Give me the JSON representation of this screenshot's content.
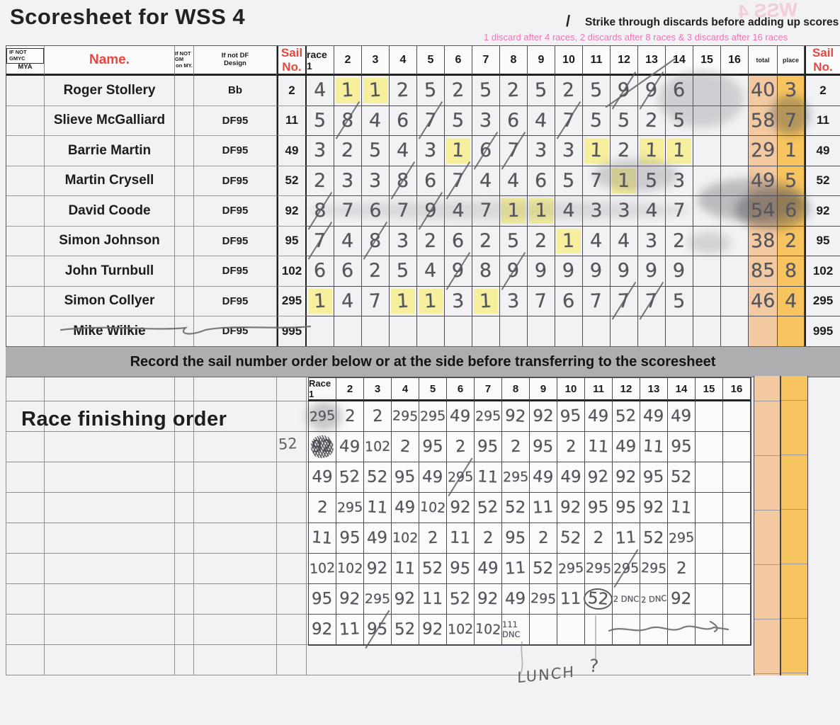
{
  "title": "Scoresheet for WSS 4",
  "ghost_text": "WSS 4",
  "instructions": {
    "slash": "/",
    "strike": "Strike through discards before adding up scores",
    "discard_rule": "1 discard after 4 races, 2 discards after 8 races & 3 discards after 16 races"
  },
  "colors": {
    "header_red": "#e8463e",
    "note_pink": "#f173b5",
    "highlight_yellow": "#f6ee8e",
    "total_column": "#f2c9a1",
    "place_column": "#f7c45f",
    "banner_gray": "#aeaeb0"
  },
  "scoresheet": {
    "headers": {
      "if_not_gmyc": "IF NOT GMYC",
      "mya": "MYA",
      "name": "Name.",
      "if_not_gm": "If NOT GM",
      "on_my": "on MY.",
      "if_not_df": "If not DF",
      "design": "Design",
      "sail": "Sail",
      "no": "No.",
      "total": "total",
      "place": "place"
    },
    "race_numbers": [
      "race 1",
      "2",
      "3",
      "4",
      "5",
      "6",
      "7",
      "8",
      "9",
      "10",
      "11",
      "12",
      "13",
      "14",
      "15",
      "16"
    ],
    "rows": [
      {
        "name": "Roger Stollery",
        "design": "Bb",
        "sail": "2",
        "sail_right": "2",
        "total": "40",
        "place": "3",
        "races": [
          "4",
          "1",
          "1",
          "2",
          "5",
          "2",
          "5",
          "2",
          "5",
          "2",
          "5",
          "9",
          "9",
          "6",
          "",
          ""
        ],
        "highlight_cols": [
          2,
          3
        ],
        "discard_cols": [
          12,
          13
        ],
        "struck_out": false
      },
      {
        "name": "Slieve McGalliard",
        "design": "DF95",
        "sail": "11",
        "sail_right": "11",
        "total": "58",
        "place": "7",
        "races": [
          "5",
          "8",
          "4",
          "6",
          "7",
          "5",
          "3",
          "6",
          "4",
          "7",
          "5",
          "5",
          "2",
          "5",
          "",
          ""
        ],
        "highlight_cols": [],
        "discard_cols": [
          2,
          5,
          10
        ],
        "struck_out": false
      },
      {
        "name": "Barrie Martin",
        "design": "DF95",
        "sail": "49",
        "sail_right": "49",
        "total": "29",
        "place": "1",
        "races": [
          "3",
          "2",
          "5",
          "4",
          "3",
          "1",
          "6",
          "7",
          "3",
          "3",
          "1",
          "2",
          "1",
          "1",
          "",
          ""
        ],
        "highlight_cols": [
          6,
          11,
          13,
          14
        ],
        "discard_cols": [
          7,
          8
        ],
        "struck_out": false
      },
      {
        "name": "Martin Crysell",
        "design": "DF95",
        "sail": "52",
        "sail_right": "52",
        "total": "49",
        "place": "5",
        "races": [
          "2",
          "3",
          "3",
          "8",
          "6",
          "7",
          "4",
          "4",
          "6",
          "5",
          "7",
          "1",
          "5",
          "3",
          "",
          ""
        ],
        "highlight_cols": [
          12
        ],
        "discard_cols": [
          4,
          6
        ],
        "struck_out": false
      },
      {
        "name": "David Coode",
        "design": "DF95",
        "sail": "92",
        "sail_right": "92",
        "total": "54",
        "place": "6",
        "races": [
          "8",
          "7",
          "6",
          "7",
          "9",
          "4",
          "7",
          "1",
          "1",
          "4",
          "3",
          "3",
          "4",
          "7",
          "",
          ""
        ],
        "highlight_cols": [
          8,
          9
        ],
        "discard_cols": [
          1,
          5
        ],
        "struck_out": false
      },
      {
        "name": "Simon Johnson",
        "design": "DF95",
        "sail": "95",
        "sail_right": "95",
        "total": "38",
        "place": "2",
        "races": [
          "7",
          "4",
          "8",
          "3",
          "2",
          "6",
          "2",
          "5",
          "2",
          "1",
          "4",
          "4",
          "3",
          "2",
          "",
          ""
        ],
        "highlight_cols": [
          10
        ],
        "discard_cols": [
          1,
          3
        ],
        "struck_out": false
      },
      {
        "name": "John Turnbull",
        "design": "DF95",
        "sail": "102",
        "sail_right": "102",
        "total": "85",
        "place": "8",
        "races": [
          "6",
          "6",
          "2",
          "5",
          "4",
          "9",
          "8",
          "9",
          "9",
          "9",
          "9",
          "9",
          "9",
          "9",
          "",
          ""
        ],
        "highlight_cols": [],
        "discard_cols": [
          6,
          8
        ],
        "struck_out": false
      },
      {
        "name": "Simon Collyer",
        "design": "DF95",
        "sail": "295",
        "sail_right": "295",
        "total": "46",
        "place": "4",
        "races": [
          "1",
          "4",
          "7",
          "1",
          "1",
          "3",
          "1",
          "3",
          "7",
          "6",
          "7",
          "7",
          "7",
          "5",
          "",
          ""
        ],
        "highlight_cols": [
          1,
          4,
          5,
          7
        ],
        "discard_cols": [
          12,
          13
        ],
        "struck_out": false
      },
      {
        "name": "Mike Wilkie",
        "design": "DF95",
        "sail": "995",
        "sail_right": "995",
        "total": "",
        "place": "",
        "races": [
          "",
          "",
          "",
          "",
          "",
          "",
          "",
          "",
          "",
          "",
          "",
          "",
          "",
          "",
          "",
          ""
        ],
        "highlight_cols": [],
        "discard_cols": [],
        "struck_out": true
      }
    ]
  },
  "banner": "Record the sail number order below or at the side before transferring to the scoresheet",
  "finishing": {
    "heading": "Race finishing order",
    "race_numbers": [
      "Race 1",
      "2",
      "3",
      "4",
      "5",
      "6",
      "7",
      "8",
      "9",
      "10",
      "11",
      "12",
      "13",
      "14",
      "15",
      "16"
    ],
    "correction_note": "52",
    "rows": [
      {
        "cells": [
          "295",
          "2",
          "2",
          "295",
          "295",
          "49",
          "295",
          "92",
          "92",
          "95",
          "49",
          "52",
          "49",
          "49",
          "",
          ""
        ],
        "discard_cols": [],
        "scribble_cols": [],
        "circled_cols": []
      },
      {
        "cells": [
          "92",
          "49",
          "102",
          "2",
          "95",
          "2",
          "95",
          "2",
          "95",
          "2",
          "11",
          "49",
          "11",
          "95",
          "",
          ""
        ],
        "discard_cols": [],
        "scribble_cols": [
          1
        ],
        "circled_cols": []
      },
      {
        "cells": [
          "49",
          "52",
          "52",
          "95",
          "49",
          "295",
          "11",
          "295",
          "49",
          "49",
          "92",
          "92",
          "95",
          "52",
          "",
          ""
        ],
        "discard_cols": [
          6
        ],
        "scribble_cols": [],
        "circled_cols": []
      },
      {
        "cells": [
          "2",
          "295",
          "11",
          "49",
          "102",
          "92",
          "52",
          "52",
          "11",
          "92",
          "95",
          "95",
          "92",
          "11",
          "",
          ""
        ],
        "discard_cols": [],
        "scribble_cols": [],
        "circled_cols": []
      },
      {
        "cells": [
          "11",
          "95",
          "49",
          "102",
          "2",
          "11",
          "2",
          "95",
          "2",
          "52",
          "2",
          "11",
          "52",
          "295",
          "",
          ""
        ],
        "discard_cols": [],
        "scribble_cols": [],
        "circled_cols": []
      },
      {
        "cells": [
          "102",
          "102",
          "92",
          "11",
          "52",
          "95",
          "49",
          "11",
          "52",
          "295",
          "295",
          "295",
          "295",
          "2",
          "",
          ""
        ],
        "discard_cols": [
          12
        ],
        "scribble_cols": [],
        "circled_cols": []
      },
      {
        "cells": [
          "95",
          "92",
          "295",
          "92",
          "11",
          "52",
          "92",
          "49",
          "295",
          "11",
          "52",
          "2 DNC",
          "2 DNC",
          "92",
          "",
          ""
        ],
        "discard_cols": [],
        "scribble_cols": [],
        "circled_cols": [
          11
        ]
      },
      {
        "cells": [
          "92",
          "11",
          "95",
          "52",
          "92",
          "102",
          "102",
          "111 DNC",
          "",
          "",
          "",
          "",
          "",
          "",
          "",
          ""
        ],
        "discard_cols": [
          3
        ],
        "scribble_cols": [],
        "circled_cols": []
      }
    ],
    "annotations": {
      "lunch": "LUNCH",
      "question": "?"
    }
  }
}
